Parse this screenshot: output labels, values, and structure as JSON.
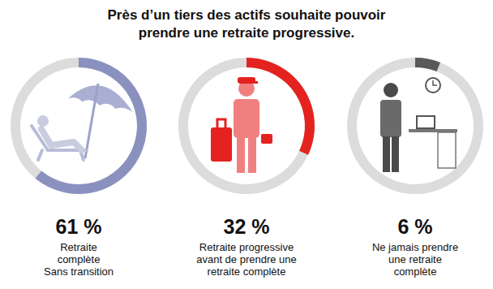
{
  "chart_data": {
    "type": "donut",
    "title": "Près d’un tiers des actifs souhaite pouvoir\nprendre une retraite progressive.",
    "categories": [
      "Retraite\ncomplète\nSans transition",
      "Retraite progressive\navant de prendre une\nretraite complète",
      "Ne jamais prendre\nune retraite\ncomplète"
    ],
    "values": [
      61,
      32,
      6
    ],
    "value_labels": [
      "61 %",
      "32 %",
      "6 %"
    ],
    "colors": [
      "#8b91bf",
      "#e42320",
      "#595959"
    ],
    "ylim": [
      0,
      100
    ],
    "data_labels": true
  }
}
